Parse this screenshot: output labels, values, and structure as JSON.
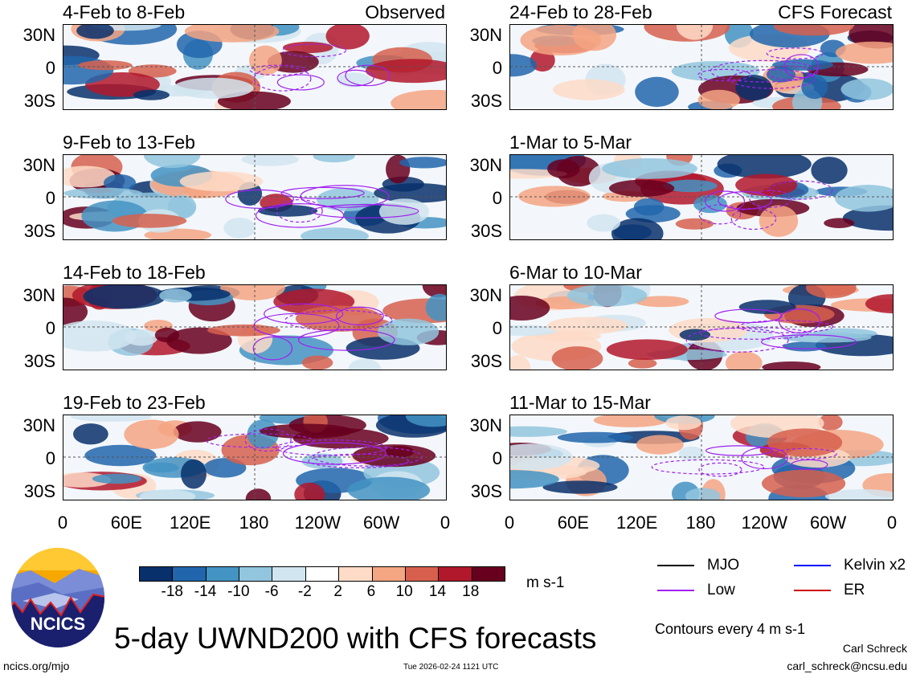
{
  "panels": [
    {
      "title": "4-Feb to 8-Feb",
      "label": "Observed",
      "column": "left"
    },
    {
      "title": "9-Feb to 13-Feb",
      "label": "",
      "column": "left"
    },
    {
      "title": "14-Feb to 18-Feb",
      "label": "",
      "column": "left"
    },
    {
      "title": "19-Feb to 23-Feb",
      "label": "",
      "column": "left"
    },
    {
      "title": "24-Feb to 28-Feb",
      "label": "CFS Forecast",
      "column": "right"
    },
    {
      "title": "1-Mar to 5-Mar",
      "label": "",
      "column": "right"
    },
    {
      "title": "6-Mar to 10-Mar",
      "label": "",
      "column": "right"
    },
    {
      "title": "11-Mar to 15-Mar",
      "label": "",
      "column": "right"
    }
  ],
  "y_ticks": [
    "30N",
    "0",
    "30S"
  ],
  "x_ticks": [
    "0",
    "60E",
    "120E",
    "180",
    "120W",
    "60W",
    "0"
  ],
  "colorbar": {
    "colors": [
      "#08306b",
      "#2166ac",
      "#4393c3",
      "#92c5de",
      "#d1e5f0",
      "#ffffff",
      "#fddbc7",
      "#f4a582",
      "#d6604d",
      "#b2182b",
      "#67001f"
    ],
    "ticks": [
      "-18",
      "-14",
      "-10",
      "-6",
      "-2",
      "2",
      "6",
      "10",
      "14",
      "18"
    ],
    "units": "m s-1"
  },
  "legend": [
    {
      "label": "MJO",
      "color": "#000000"
    },
    {
      "label": "Kelvin x2",
      "color": "#0000ff"
    },
    {
      "label": "Low",
      "color": "#a020f0"
    },
    {
      "label": "ER",
      "color": "#cc0000"
    }
  ],
  "contours_note": "Contours every 4 m s-1",
  "title": "5-day UWND200 with CFS forecasts",
  "logo_text": "NCICS",
  "website": "ncics.org/mjo",
  "timestamp": "Tue 2026-02-24 1121 UTC",
  "author": "Carl Schreck",
  "email": "carl_schreck@ncsu.edu"
}
